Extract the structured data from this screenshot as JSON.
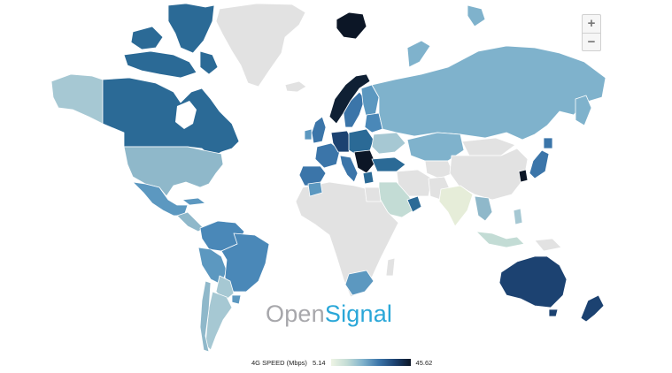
{
  "zoom": {
    "in_label": "+",
    "out_label": "−"
  },
  "brand": {
    "part1": "Open",
    "part2": "Signal"
  },
  "legend": {
    "label": "4G SPEED (Mbps)",
    "min": "5.14",
    "max": "45.62",
    "gradient": [
      "#eef4e4",
      "#c3dcd5",
      "#7fb2cc",
      "#3b75a9",
      "#1c4271",
      "#0c1626"
    ]
  },
  "colors": {
    "no_data": "#e2e2e2",
    "ocean": "#ffffff",
    "border": "#ffffff"
  }
}
